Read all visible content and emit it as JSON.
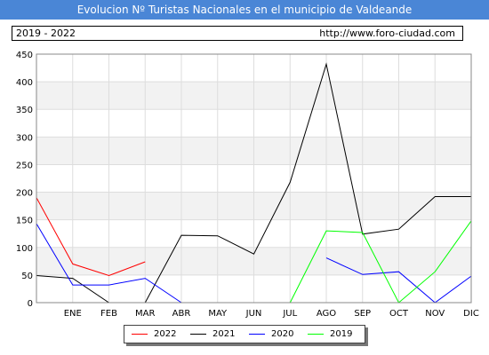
{
  "header": {
    "title": "Evolucion Nº Turistas Nacionales en el municipio de Valdeande",
    "period": "2019 - 2022",
    "url": "http://www.foro-ciudad.com"
  },
  "chart_data": {
    "type": "line",
    "title": "Evolucion Nº Turistas Nacionales en el municipio de Valdeande",
    "categories": [
      "",
      "ENE",
      "FEB",
      "MAR",
      "ABR",
      "MAY",
      "JUN",
      "JUL",
      "AGO",
      "SEP",
      "OCT",
      "NOV",
      "DIC"
    ],
    "y_ticks": [
      0,
      50,
      100,
      150,
      200,
      250,
      300,
      350,
      400,
      450
    ],
    "ylim": [
      0,
      450
    ],
    "grid": true,
    "legend_position": "bottom",
    "series": [
      {
        "name": "2022",
        "color": "#ff0000",
        "values": [
          190,
          70,
          49,
          74,
          null,
          null,
          null,
          null,
          null,
          null,
          null,
          null,
          null
        ]
      },
      {
        "name": "2021",
        "color": "#000000",
        "values": [
          49,
          44,
          0,
          0,
          122,
          121,
          88,
          218,
          432,
          124,
          133,
          192,
          192
        ]
      },
      {
        "name": "2020",
        "color": "#0000ff",
        "values": [
          143,
          32,
          32,
          44,
          0,
          null,
          null,
          null,
          81,
          51,
          56,
          0,
          48
        ]
      },
      {
        "name": "2019",
        "color": "#00ff00",
        "values": [
          null,
          null,
          null,
          null,
          null,
          null,
          null,
          0,
          130,
          127,
          0,
          56,
          148
        ]
      }
    ]
  }
}
